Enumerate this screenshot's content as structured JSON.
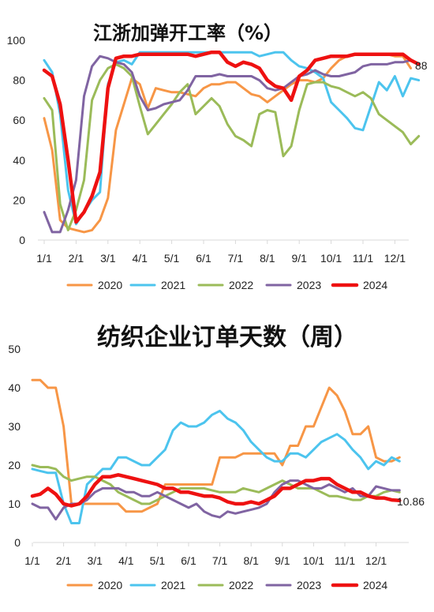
{
  "chart_data": [
    {
      "type": "line",
      "title": "江浙加弹开工率（%）",
      "xlabel": "",
      "ylabel": "",
      "ylim": [
        0,
        100
      ],
      "yticks": [
        0,
        20,
        40,
        60,
        80,
        100
      ],
      "x_tick_labels": [
        "1/1",
        "2/1",
        "3/1",
        "4/1",
        "5/1",
        "6/1",
        "7/1",
        "8/1",
        "9/1",
        "10/1",
        "11/1",
        "12/1"
      ],
      "legend_position": "bottom",
      "grid": false,
      "end_label": "88",
      "series": [
        {
          "name": "2020",
          "color": "#F79646",
          "x": [
            1,
            1.25,
            1.5,
            1.75,
            2,
            2.25,
            2.5,
            2.75,
            3,
            3.25,
            3.5,
            3.75,
            4,
            4.25,
            4.5,
            4.75,
            5,
            5.25,
            5.5,
            5.75,
            6,
            6.25,
            6.5,
            6.75,
            7,
            7.25,
            7.5,
            7.75,
            8,
            8.25,
            8.5,
            8.75,
            9,
            9.25,
            9.5,
            9.75,
            10,
            10.25,
            10.5,
            10.75,
            11,
            11.25,
            11.5,
            11.75,
            12,
            12.25,
            12.5
          ],
          "values": [
            61,
            45,
            10,
            6,
            5,
            4,
            5,
            10,
            21,
            55,
            68,
            81,
            78,
            66,
            76,
            75,
            74,
            74,
            73,
            72,
            76,
            78,
            78,
            79,
            79,
            76,
            73,
            72,
            69,
            72,
            75,
            78,
            80,
            80,
            79,
            81,
            86,
            90,
            92,
            93,
            93,
            93,
            93,
            93,
            92,
            92,
            86
          ]
        },
        {
          "name": "2021",
          "color": "#4CC4EE",
          "x": [
            1,
            1.25,
            1.5,
            1.75,
            2,
            2.25,
            2.5,
            2.75,
            3,
            3.25,
            3.5,
            3.75,
            4,
            4.25,
            4.5,
            4.75,
            5,
            5.25,
            5.5,
            5.75,
            6,
            6.25,
            6.5,
            6.75,
            7,
            7.25,
            7.5,
            7.75,
            8,
            8.25,
            8.5,
            8.75,
            9,
            9.25,
            9.5,
            9.75,
            10,
            10.25,
            10.5,
            10.75,
            11,
            11.25,
            11.5,
            11.75,
            12,
            12.25,
            12.5,
            12.75
          ],
          "values": [
            90,
            84,
            63,
            25,
            8,
            14,
            20,
            24,
            78,
            89,
            90,
            88,
            94,
            94,
            94,
            94,
            94,
            94,
            94,
            94,
            94,
            94,
            94,
            94,
            94,
            94,
            94,
            92,
            93,
            94,
            94,
            90,
            87,
            86,
            84,
            81,
            69,
            65,
            61,
            56,
            55,
            67,
            79,
            75,
            82,
            72,
            81,
            80
          ]
        },
        {
          "name": "2022",
          "color": "#9BBB59",
          "x": [
            1,
            1.25,
            1.5,
            1.75,
            2,
            2.25,
            2.5,
            2.75,
            3,
            3.25,
            3.5,
            3.75,
            4,
            4.25,
            4.5,
            4.75,
            5,
            5.25,
            5.5,
            5.75,
            6,
            6.25,
            6.5,
            6.75,
            7,
            7.25,
            7.5,
            7.75,
            8,
            8.25,
            8.5,
            8.75,
            9,
            9.25,
            9.5,
            9.75,
            10,
            10.25,
            10.5,
            10.75,
            11,
            11.25,
            11.5,
            11.75,
            12,
            12.25,
            12.5,
            12.75
          ],
          "values": [
            71,
            65,
            18,
            5,
            15,
            30,
            70,
            80,
            86,
            88,
            86,
            82,
            67,
            53,
            58,
            63,
            68,
            74,
            78,
            63,
            67,
            71,
            67,
            58,
            52,
            50,
            47,
            63,
            65,
            64,
            42,
            47,
            65,
            78,
            79,
            79,
            77,
            76,
            74,
            72,
            74,
            71,
            63,
            60,
            57,
            54,
            48,
            52
          ]
        },
        {
          "name": "2023",
          "color": "#8064A2",
          "x": [
            1,
            1.25,
            1.5,
            1.75,
            2,
            2.25,
            2.5,
            2.75,
            3,
            3.25,
            3.5,
            3.75,
            4,
            4.25,
            4.5,
            4.75,
            5,
            5.25,
            5.5,
            5.75,
            6,
            6.25,
            6.5,
            6.75,
            7,
            7.25,
            7.5,
            7.75,
            8,
            8.25,
            8.5,
            8.75,
            9,
            9.25,
            9.5,
            9.75,
            10,
            10.25,
            10.5,
            10.75,
            11,
            11.25,
            11.5,
            11.75,
            12,
            12.25,
            12.5,
            12.75
          ],
          "values": [
            14,
            4,
            4,
            15,
            30,
            72,
            87,
            92,
            91,
            89,
            88,
            84,
            72,
            65,
            66,
            68,
            69,
            70,
            75,
            82,
            82,
            82,
            83,
            82,
            82,
            82,
            82,
            80,
            76,
            75,
            76,
            79,
            82,
            83,
            85,
            83,
            82,
            82,
            83,
            84,
            87,
            88,
            88,
            88,
            89,
            89,
            90,
            88
          ]
        },
        {
          "name": "2024",
          "color": "#EE1111",
          "x": [
            1,
            1.25,
            1.5,
            1.75,
            2,
            2.25,
            2.5,
            2.75,
            3,
            3.25,
            3.5,
            3.75,
            4,
            4.25,
            4.5,
            4.75,
            5,
            5.25,
            5.5,
            5.75,
            6,
            6.25,
            6.5,
            6.75,
            7,
            7.25,
            7.5,
            7.75,
            8,
            8.25,
            8.5,
            8.75,
            9,
            9.25,
            9.5,
            9.75,
            10,
            10.25,
            10.5,
            10.75,
            11,
            11.25,
            11.5,
            11.75,
            12,
            12.25,
            12.5,
            12.75
          ],
          "values": [
            85,
            82,
            68,
            40,
            9,
            14,
            22,
            34,
            76,
            91,
            92,
            92,
            93,
            93,
            93,
            93,
            93,
            93,
            93,
            92,
            93,
            94,
            94,
            89,
            87,
            89,
            88,
            86,
            80,
            77,
            76,
            70,
            82,
            85,
            90,
            91,
            92,
            92,
            92,
            93,
            93,
            93,
            93,
            93,
            93,
            93,
            90,
            88
          ]
        }
      ]
    },
    {
      "type": "line",
      "title": "纺织企业订单天数（周）",
      "xlabel": "",
      "ylabel": "",
      "ylim": [
        0,
        50
      ],
      "yticks": [
        0,
        10,
        20,
        30,
        40,
        50
      ],
      "x_tick_labels": [
        "1/1",
        "2/1",
        "3/1",
        "4/1",
        "5/1",
        "6/1",
        "7/1",
        "8/1",
        "9/1",
        "10/1",
        "11/1",
        "12/1"
      ],
      "legend_position": "bottom",
      "grid": false,
      "end_label": "10.86",
      "series": [
        {
          "name": "2020",
          "color": "#F79646",
          "x": [
            1,
            1.25,
            1.5,
            1.75,
            2,
            2.25,
            2.5,
            2.75,
            3,
            3.25,
            3.5,
            3.75,
            4,
            4.25,
            4.5,
            4.75,
            5,
            5.25,
            5.5,
            5.75,
            6,
            6.25,
            6.5,
            6.75,
            7,
            7.25,
            7.5,
            7.75,
            8,
            8.25,
            8.5,
            8.75,
            9,
            9.25,
            9.5,
            9.75,
            10,
            10.25,
            10.5,
            10.75,
            11,
            11.25,
            11.5,
            11.75,
            12,
            12.25,
            12.5,
            12.75
          ],
          "values": [
            42,
            42,
            40,
            40,
            30,
            10,
            10,
            10,
            10,
            10,
            10,
            10,
            8,
            8,
            8,
            9,
            10,
            15,
            15,
            15,
            15,
            15,
            15,
            15,
            22,
            22,
            22,
            23,
            23,
            23,
            23,
            23,
            20,
            25,
            25,
            30,
            30,
            35,
            40,
            38,
            34,
            28,
            28,
            30,
            22,
            21,
            21,
            22
          ]
        },
        {
          "name": "2021",
          "color": "#4CC4EE",
          "x": [
            1,
            1.25,
            1.5,
            1.75,
            2,
            2.25,
            2.5,
            2.75,
            3,
            3.25,
            3.5,
            3.75,
            4,
            4.25,
            4.5,
            4.75,
            5,
            5.25,
            5.5,
            5.75,
            6,
            6.25,
            6.5,
            6.75,
            7,
            7.25,
            7.5,
            7.75,
            8,
            8.25,
            8.5,
            8.75,
            9,
            9.25,
            9.5,
            9.75,
            10,
            10.25,
            10.5,
            10.75,
            11,
            11.25,
            11.5,
            11.75,
            12,
            12.25,
            12.5,
            12.75
          ],
          "values": [
            19,
            18.5,
            18,
            18,
            10,
            5,
            5,
            15,
            17,
            19,
            19,
            22,
            22,
            21,
            20,
            20,
            22,
            24,
            29,
            31,
            30,
            30,
            31,
            33,
            34,
            32,
            31,
            29,
            26,
            24,
            22,
            21,
            21,
            23,
            23,
            22,
            24,
            26,
            27,
            28,
            26.5,
            24,
            22,
            19,
            21,
            20,
            22,
            21
          ]
        },
        {
          "name": "2022",
          "color": "#9BBB59",
          "x": [
            1,
            1.25,
            1.5,
            1.75,
            2,
            2.25,
            2.5,
            2.75,
            3,
            3.25,
            3.5,
            3.75,
            4,
            4.25,
            4.5,
            4.75,
            5,
            5.25,
            5.5,
            5.75,
            6,
            6.25,
            6.5,
            6.75,
            7,
            7.25,
            7.5,
            7.75,
            8,
            8.25,
            8.5,
            8.75,
            9,
            9.25,
            9.5,
            9.75,
            10,
            10.25,
            10.5,
            10.75,
            11,
            11.25,
            11.5,
            11.75,
            12,
            12.25,
            12.5,
            12.75
          ],
          "values": [
            20,
            19.5,
            19.5,
            19,
            17,
            16,
            16.5,
            17,
            17,
            16,
            15,
            13,
            12,
            11,
            10,
            10,
            11,
            12,
            13,
            14,
            14,
            14,
            14,
            13.5,
            13,
            13,
            13,
            14,
            13.5,
            13,
            14,
            15,
            16,
            15,
            14,
            14,
            14,
            13,
            12,
            12,
            11.5,
            11,
            11,
            12,
            12,
            13,
            13.5,
            13
          ]
        },
        {
          "name": "2023",
          "color": "#8064A2",
          "x": [
            1,
            1.25,
            1.5,
            1.75,
            2,
            2.25,
            2.5,
            2.75,
            3,
            3.25,
            3.5,
            3.75,
            4,
            4.25,
            4.5,
            4.75,
            5,
            5.25,
            5.5,
            5.75,
            6,
            6.25,
            6.5,
            6.75,
            7,
            7.25,
            7.5,
            7.75,
            8,
            8.25,
            8.5,
            8.75,
            9,
            9.25,
            9.5,
            9.75,
            10,
            10.25,
            10.5,
            10.75,
            11,
            11.25,
            11.5,
            11.75,
            12,
            12.25,
            12.5,
            12.75
          ],
          "values": [
            10,
            9,
            9,
            6,
            9,
            10,
            10,
            11,
            13,
            14,
            14,
            14,
            13,
            13,
            12,
            12,
            13,
            12,
            11,
            10,
            9,
            10,
            8,
            7,
            6.5,
            8,
            7.5,
            8,
            8.5,
            9,
            10,
            13,
            15,
            16,
            16,
            15,
            14,
            14,
            15,
            14,
            13,
            14,
            12,
            12,
            14.5,
            14,
            13.5,
            13.5
          ]
        },
        {
          "name": "2024",
          "color": "#EE1111",
          "x": [
            1,
            1.25,
            1.5,
            1.75,
            2,
            2.25,
            2.5,
            2.75,
            3,
            3.25,
            3.5,
            3.75,
            4,
            4.25,
            4.5,
            4.75,
            5,
            5.25,
            5.5,
            5.75,
            6,
            6.25,
            6.5,
            6.75,
            7,
            7.25,
            7.5,
            7.75,
            8,
            8.25,
            8.5,
            8.75,
            9,
            9.25,
            9.5,
            9.75,
            10,
            10.25,
            10.5,
            10.75,
            11,
            11.25,
            11.5,
            11.75,
            12,
            12.25,
            12.5,
            12.75
          ],
          "values": [
            12,
            12.5,
            14,
            12.5,
            10,
            9.5,
            10,
            12,
            15,
            17,
            17,
            17.5,
            17,
            16.5,
            16,
            15.5,
            15,
            14,
            14,
            13,
            13,
            12.5,
            12,
            12,
            11.5,
            10.5,
            10,
            10,
            10.5,
            10,
            11,
            12,
            14,
            14,
            15,
            16,
            16,
            16.5,
            16.5,
            15,
            14,
            13,
            13,
            12,
            11.5,
            11.5,
            11,
            10.86
          ]
        }
      ]
    }
  ]
}
